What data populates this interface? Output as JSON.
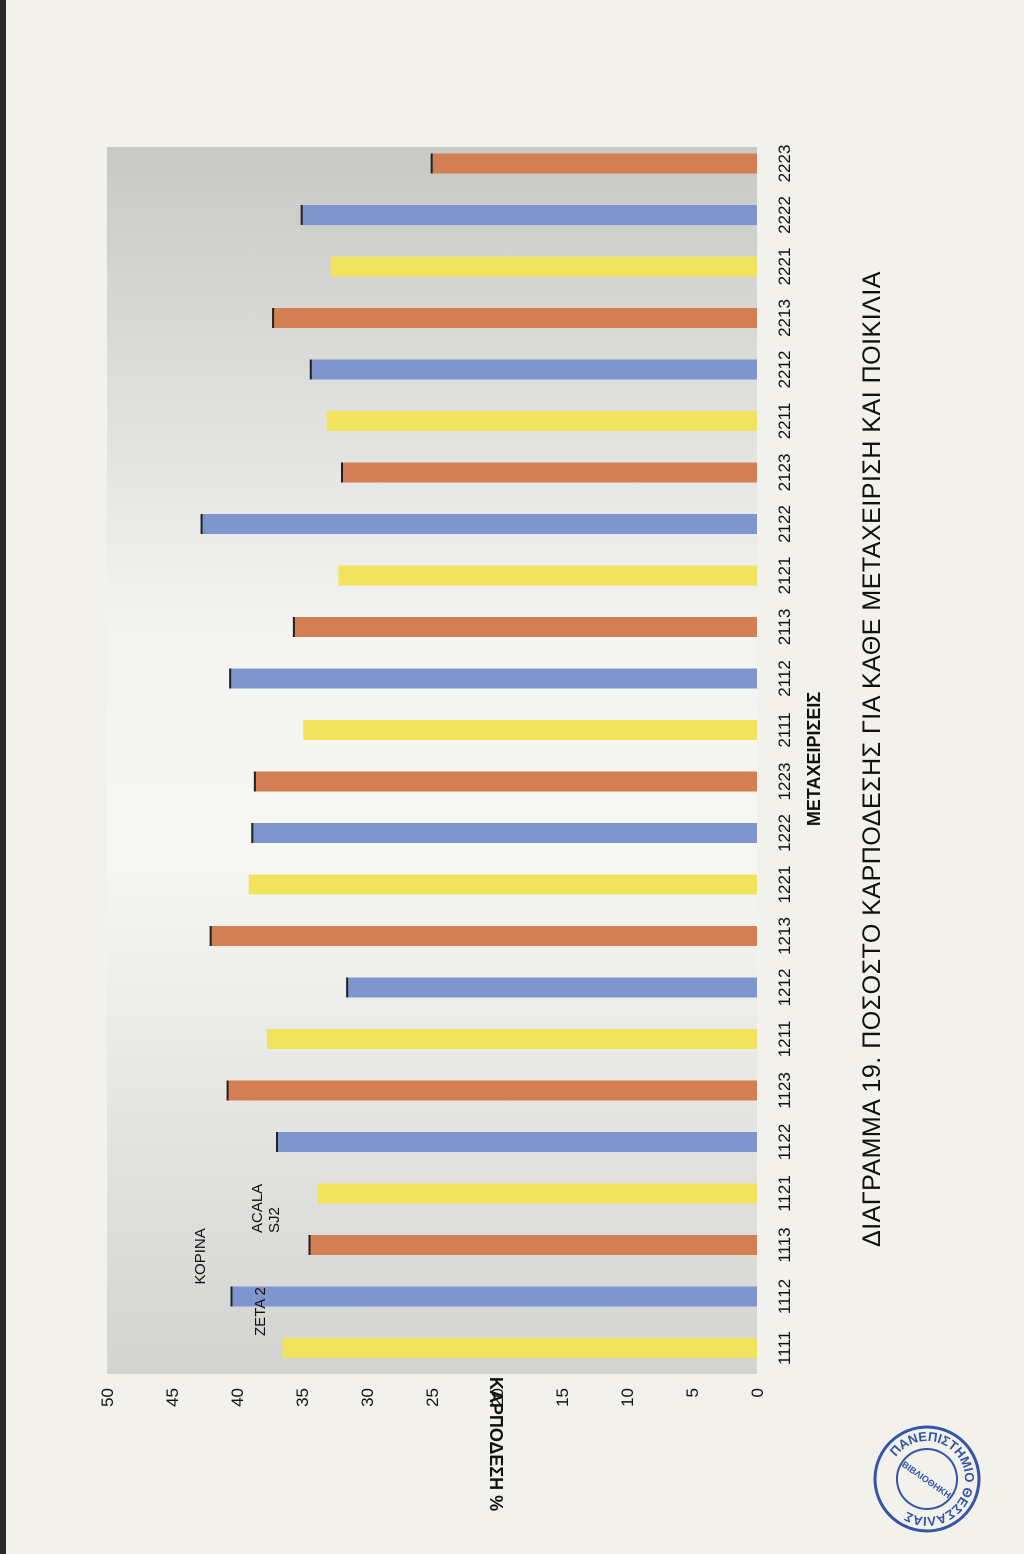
{
  "chart_data": {
    "type": "bar",
    "orientation": "vertical-bars-page-rotated",
    "title": "ΔΙΑΓΡΑΜΜΑ 19. ΠΟΣΟΣΤΟ ΚΑΡΠΟΔΕΣΗΣ ΓΙΑ ΚΑΘΕ ΜΕΤΑΧΕΙΡΙΣΗ ΚΑΙ ΠΟΙΚΙΛΙΑ",
    "xlabel": "ΜΕΤΑΧΕΙΡΙΣΕΙΣ",
    "ylabel": "ΚΑΡΠΟΔΕΣΗ %",
    "ylim": [
      0,
      50
    ],
    "yticks": [
      "0",
      "5",
      "10",
      "15",
      "20",
      "25",
      "30",
      "35",
      "40",
      "45",
      "50"
    ],
    "categories": [
      "1111",
      "1112",
      "1113",
      "1121",
      "1122",
      "1123",
      "1211",
      "1212",
      "1213",
      "1221",
      "1222",
      "1223",
      "2111",
      "2112",
      "2113",
      "2121",
      "2122",
      "2123",
      "2211",
      "2212",
      "2213",
      "2221",
      "2222",
      "2223"
    ],
    "series_cycle": [
      "ΖΕΤΑ 2",
      "ΚΟΡΙΝΑ",
      "ACALA SJ2"
    ],
    "series_colors": {
      "ΖΕΤΑ 2": "#f2e35f",
      "ΚΟΡΙΝΑ": "#7f95cd",
      "ACALA SJ2": "#d47f53"
    },
    "values": [
      36.5,
      40.5,
      34.5,
      33.8,
      37.0,
      40.8,
      37.7,
      31.6,
      42.1,
      39.1,
      38.9,
      38.7,
      34.9,
      40.6,
      35.7,
      32.2,
      42.8,
      32.0,
      33.1,
      34.4,
      37.3,
      32.8,
      35.1,
      25.1
    ],
    "legend": [
      {
        "lines": [
          "ΖΕΤΑ 2"
        ]
      },
      {
        "lines": [
          "ΚΟΡΙΝΑ"
        ]
      },
      {
        "lines": [
          "ACALA",
          "SJ2"
        ]
      }
    ],
    "grid": false
  },
  "stamp": {
    "text_top": "ΠΑΝΕΠΙΣΤΗΜΙΟ ΘΕΣΣΑΛΙΑΣ",
    "text_center": "ΒΙΒΛΙΟΘΗΚΗ",
    "color": "#3454a6"
  }
}
